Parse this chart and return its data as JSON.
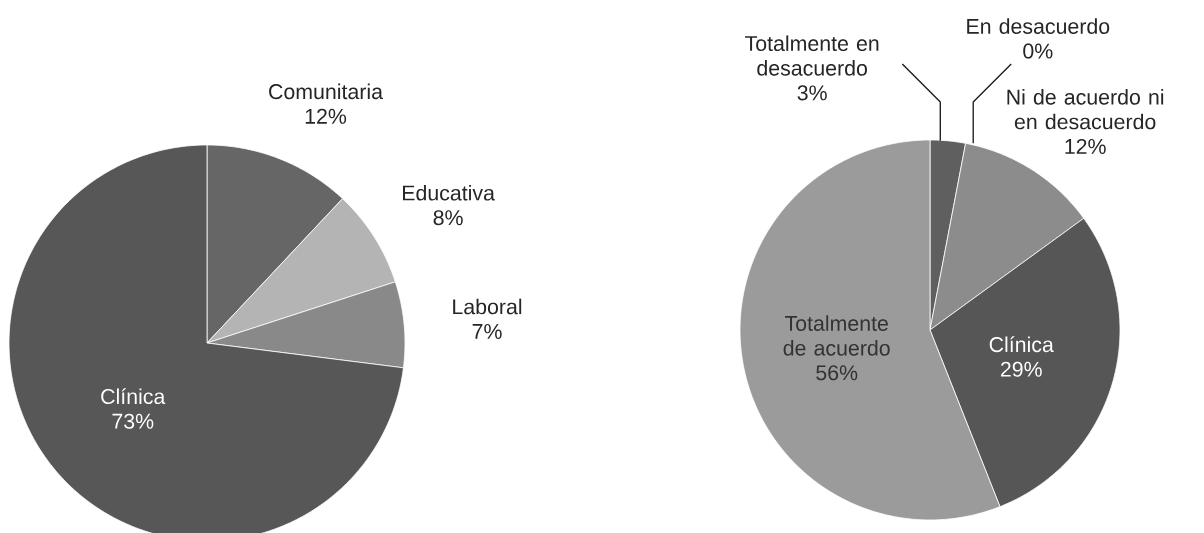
{
  "chart_data": [
    {
      "type": "pie",
      "categories": [
        "Comunitaria",
        "Educativa",
        "Laboral",
        "Clínica"
      ],
      "values": [
        12,
        8,
        7,
        73
      ],
      "value_labels": [
        "12%",
        "8%",
        "7%",
        "73%"
      ],
      "colors": [
        "#666666",
        "#b4b4b4",
        "#898989",
        "#575757"
      ]
    },
    {
      "type": "pie",
      "categories": [
        "Totalmente en desacuerdo",
        "En desacuerdo",
        "Ni de acuerdo ni en desacuerdo",
        "Clínica",
        "Totalmente de acuerdo"
      ],
      "values": [
        3,
        0,
        12,
        29,
        56
      ],
      "value_labels": [
        "3%",
        "0%",
        "12%",
        "29%",
        "56%"
      ],
      "colors": [
        "#5f5f5f",
        "#bbbbbb",
        "#8c8c8c",
        "#565656",
        "#9b9b9b"
      ]
    }
  ]
}
